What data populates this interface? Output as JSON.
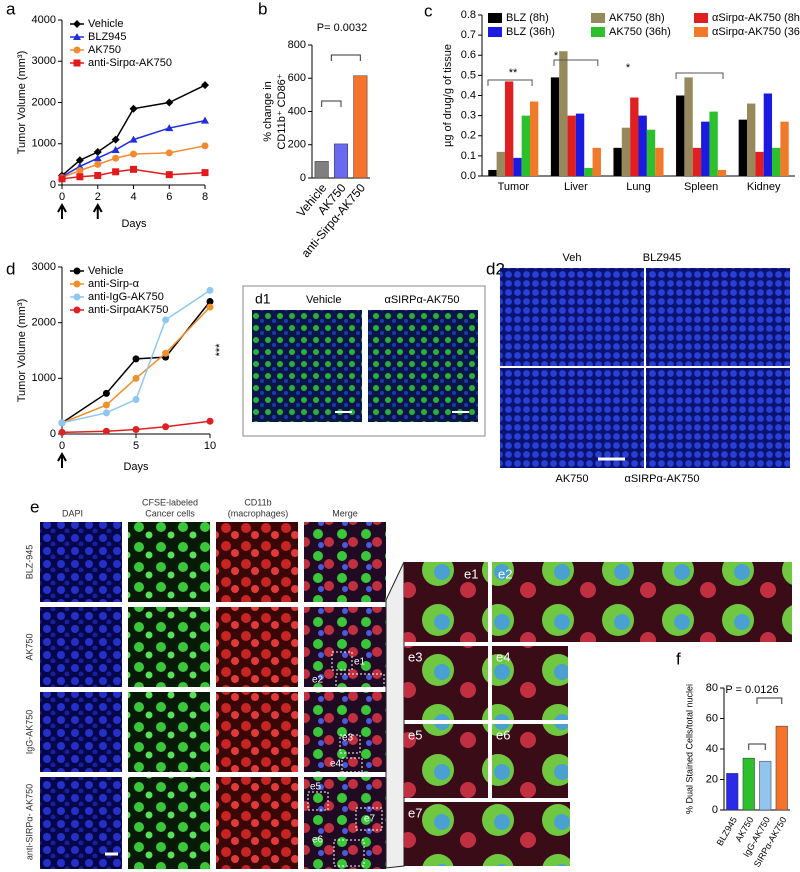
{
  "chart_data": [
    {
      "type": "line",
      "panel": "a",
      "x": [
        0,
        1,
        2,
        3,
        4,
        6,
        8
      ],
      "xlim": [
        0,
        8
      ],
      "xticks": [
        0,
        2,
        4,
        6,
        8
      ],
      "ylim": [
        0,
        4000
      ],
      "yticks": [
        0,
        1000,
        2000,
        3000,
        4000
      ],
      "xlabel": "Days",
      "ylabel": [
        "Tumor Volume (mm³)"
      ],
      "legend": "upper left",
      "treatment_days": [
        0,
        2
      ],
      "series": [
        {
          "name": "Vehicle",
          "color": "#000000",
          "marker": "diamond",
          "values": [
            230,
            600,
            800,
            1100,
            1850,
            2000,
            2420
          ]
        },
        {
          "name": "BLZ945",
          "color": "#1f2ee0",
          "marker": "triangle",
          "values": [
            200,
            450,
            650,
            850,
            1100,
            1380,
            1560
          ]
        },
        {
          "name": "AK750",
          "color": "#f28a30",
          "marker": "circle",
          "values": [
            180,
            350,
            500,
            650,
            750,
            780,
            950
          ]
        },
        {
          "name": "anti-Sirpα-AK750",
          "color": "#e31a1c",
          "marker": "square",
          "values": [
            150,
            200,
            230,
            320,
            380,
            250,
            300
          ]
        }
      ]
    },
    {
      "type": "bar",
      "panel": "b",
      "categories": [
        "Vehicle",
        "AK750",
        "anti-Sirpα-AK750"
      ],
      "values": [
        100,
        205,
        615
      ],
      "colors": [
        "#7f7f7f",
        "#6a6af0",
        "#f5732a"
      ],
      "ylim": [
        0,
        800
      ],
      "yticks": [
        0,
        200,
        400,
        600,
        800
      ],
      "ylabel": [
        "% change in",
        "CD11b⁺ CD86⁺"
      ],
      "annotations": [
        "P= 0.0032"
      ]
    },
    {
      "type": "bar",
      "panel": "c",
      "categories": [
        "Tumor",
        "Liver",
        "Lung",
        "Spleen",
        "Kidney"
      ],
      "ylim": [
        0,
        0.8
      ],
      "yticks": [
        {
          "value": 0,
          "label": "0.0"
        },
        0.1,
        0.2,
        0.3,
        0.4,
        0.5,
        0.6,
        0.7,
        0.8
      ],
      "ylabel": [
        "µg of drug/g of tissue"
      ],
      "legend": "top",
      "annotations": [
        "**",
        "*",
        "*"
      ],
      "series": [
        {
          "name": "BLZ (8h)",
          "color": "#000000",
          "values": [
            0.03,
            0.49,
            0.14,
            0.4,
            0.28
          ]
        },
        {
          "name": "AK750 (8h)",
          "color": "#968a5c",
          "values": [
            0.12,
            0.62,
            0.24,
            0.49,
            0.36
          ]
        },
        {
          "name": "αSirpα-AK750 (8h)",
          "color": "#e02020",
          "values": [
            0.47,
            0.3,
            0.39,
            0.14,
            0.12
          ]
        },
        {
          "name": "BLZ (36h)",
          "color": "#1a1ae0",
          "values": [
            0.09,
            0.31,
            0.3,
            0.27,
            0.41
          ]
        },
        {
          "name": "AK750 (36h)",
          "color": "#2cc02c",
          "values": [
            0.3,
            0.04,
            0.23,
            0.32,
            0.14
          ]
        },
        {
          "name": "αSirpα-AK750 (36h)",
          "color": "#f07a2a",
          "values": [
            0.37,
            0.14,
            0.14,
            0.03,
            0.27
          ]
        }
      ]
    },
    {
      "type": "line",
      "panel": "d",
      "x": [
        0,
        3,
        5,
        7,
        10
      ],
      "xlim": [
        0,
        10
      ],
      "xticks": [
        0,
        5,
        10
      ],
      "ylim": [
        0,
        3000
      ],
      "yticks": [
        0,
        1000,
        2000,
        3000
      ],
      "xlabel": "Days",
      "ylabel": [
        "Tumor Volume (mm³)"
      ],
      "legend": "upper left",
      "treatment_days": [
        0
      ],
      "annotations": [
        "***"
      ],
      "series": [
        {
          "name": "Vehicle",
          "color": "#000000",
          "marker": "circle",
          "values": [
            200,
            730,
            1350,
            1380,
            2380
          ]
        },
        {
          "name": "anti-Sirp-α",
          "color": "#f0902a",
          "marker": "circle",
          "values": [
            200,
            520,
            1000,
            1450,
            2280
          ]
        },
        {
          "name": "anti-IgG-AK750",
          "color": "#8ec8f0",
          "marker": "circle",
          "values": [
            200,
            380,
            620,
            2050,
            2580
          ]
        },
        {
          "name": "anti-SirpαAK750",
          "color": "#e02020",
          "marker": "circle",
          "values": [
            30,
            50,
            80,
            130,
            230
          ]
        }
      ]
    },
    {
      "type": "bar",
      "panel": "f",
      "categories": [
        "BLZ945",
        "AK750",
        "IgG-AK750",
        "SIRPα-AK750"
      ],
      "values": [
        24,
        34,
        32,
        55
      ],
      "colors": [
        "#2a2ae8",
        "#2cc02c",
        "#92c4f0",
        "#f5732a"
      ],
      "ylim": [
        0,
        80
      ],
      "yticks": [
        0,
        20,
        40,
        60,
        80
      ],
      "ylabel": [
        "% Dual Stained Cells/total nuclei"
      ],
      "annotations": [
        "P = 0.0126"
      ]
    }
  ],
  "figure_panels": {
    "d1": {
      "label": "d1",
      "titles": [
        "Vehicle",
        "αSIRPα-AK750"
      ]
    },
    "d2": {
      "label": "d2",
      "titles": [
        "Veh",
        "BLZ945",
        "AK750",
        "αSIRPα-AK750"
      ]
    },
    "e": {
      "label": "e",
      "columns": [
        "DAPI",
        "CFSE-labeled",
        "Cancer cells",
        "CD11b",
        "(macrophages)",
        "Merge"
      ],
      "rows": [
        "BLZ-945",
        "AK750",
        "IgG-AK750",
        "anti-SIRPα- AK750"
      ],
      "insets": [
        "e1",
        "e2",
        "e3",
        "e4",
        "e5",
        "e6",
        "e7"
      ]
    }
  }
}
